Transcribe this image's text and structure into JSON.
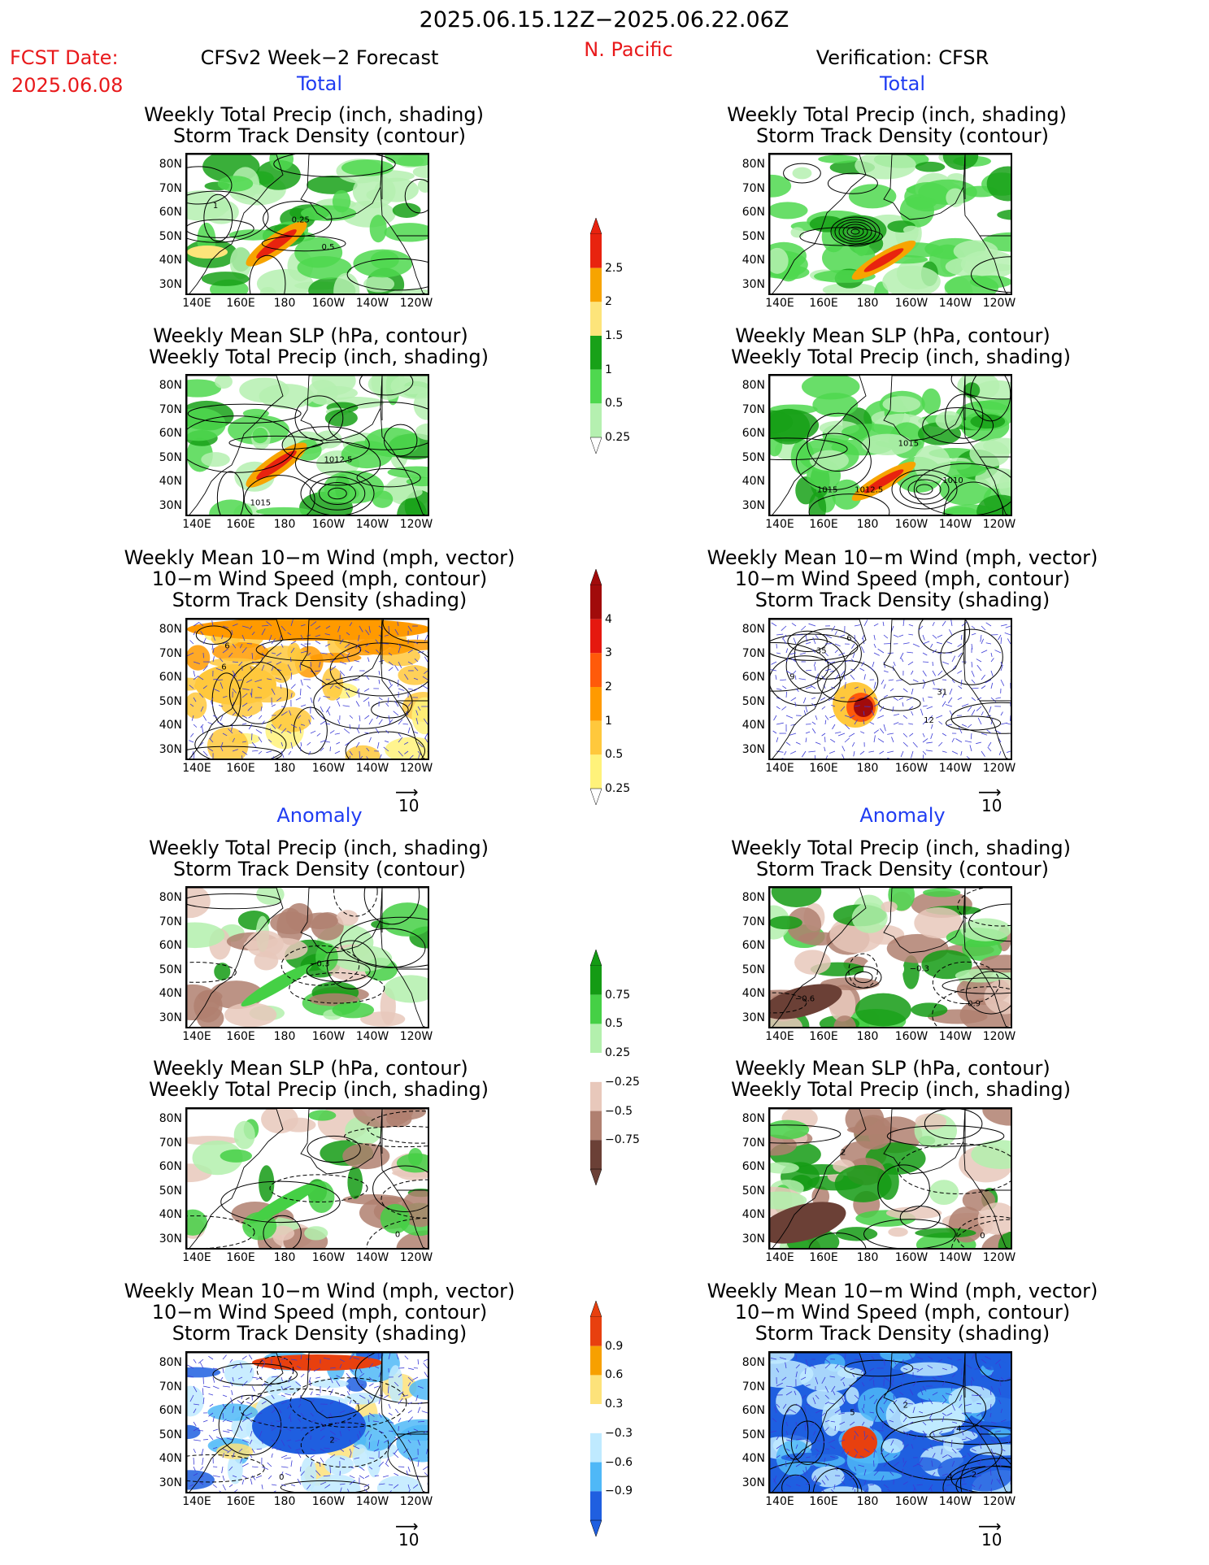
{
  "header": {
    "period": "2025.06.15.12Z−2025.06.22.06Z",
    "region": "N. Pacific",
    "fcst_label": "FCST Date:",
    "fcst_date": "2025.06.08",
    "left_title": "CFSv2 Week−2 Forecast",
    "right_title": "Verification: CFSR"
  },
  "sections": {
    "total": "Total",
    "anomaly": "Anomaly"
  },
  "titles": {
    "precip_storm": [
      "Weekly Total Precip (inch, shading)",
      "Storm Track Density (contour)"
    ],
    "slp_precip": [
      "Weekly Mean SLP (hPa, contour)",
      "Weekly Total Precip (inch, shading)"
    ],
    "wind": [
      "Weekly Mean 10−m Wind (mph, vector)",
      "10−m Wind Speed (mph, contour)",
      "Storm Track Density (shading)"
    ]
  },
  "axes": {
    "lat": [
      "80N",
      "70N",
      "60N",
      "50N",
      "40N",
      "30N"
    ],
    "lon": [
      "140E",
      "160E",
      "180",
      "160W",
      "140W",
      "120W"
    ]
  },
  "vector_ref": "10",
  "colorbars": {
    "precip_total": {
      "labels": [
        "2.5",
        "2",
        "1.5",
        "1",
        "0.5",
        "0.25"
      ],
      "colors": [
        "#e8230f",
        "#f7a400",
        "#fde47a",
        "#18a118",
        "#4fd84f",
        "#b5f0b0"
      ]
    },
    "storm_total": {
      "labels": [
        "4",
        "3",
        "2",
        "1",
        "0.5",
        "0.25"
      ],
      "colors": [
        "#a10b0b",
        "#e5180f",
        "#ff5a0a",
        "#ff9a00",
        "#ffc83c",
        "#fff27a"
      ]
    },
    "precip_anom": {
      "labels": [
        "0.75",
        "0.5",
        "0.25",
        "−0.25",
        "−0.5",
        "−0.75"
      ],
      "colors": [
        "#149b14",
        "#45d045",
        "#b3f0ad",
        "#ffffff",
        "#e8c8bb",
        "#b08070",
        "#6b4036"
      ]
    },
    "storm_anom": {
      "labels": [
        "0.9",
        "0.6",
        "0.3",
        "−0.3",
        "−0.6",
        "−0.9"
      ],
      "colors": [
        "#e8400f",
        "#f7a000",
        "#fde27a",
        "#ffffff",
        "#bfeaff",
        "#4fb8f7",
        "#1f5fe0"
      ]
    }
  },
  "contour_labels": {
    "p1": [
      "0.25",
      "1",
      "0.5"
    ],
    "p2": [
      "1012.5",
      "1015"
    ],
    "p3": [
      "6",
      "6"
    ],
    "p4": [
      "−0.3"
    ],
    "p5": [
      "0"
    ],
    "p6": [
      "2",
      "0"
    ],
    "q1": [],
    "q2": [
      "1010",
      "1015",
      "1012.5",
      "1015"
    ],
    "q3": [
      "35",
      "31",
      "12",
      "6",
      "9"
    ],
    "q4": [
      "−0.9",
      "−0.6",
      "−0.3"
    ],
    "q5": [
      "0",
      "2"
    ],
    "q6": [
      "2",
      "2",
      "5",
      "4",
      "4"
    ]
  }
}
